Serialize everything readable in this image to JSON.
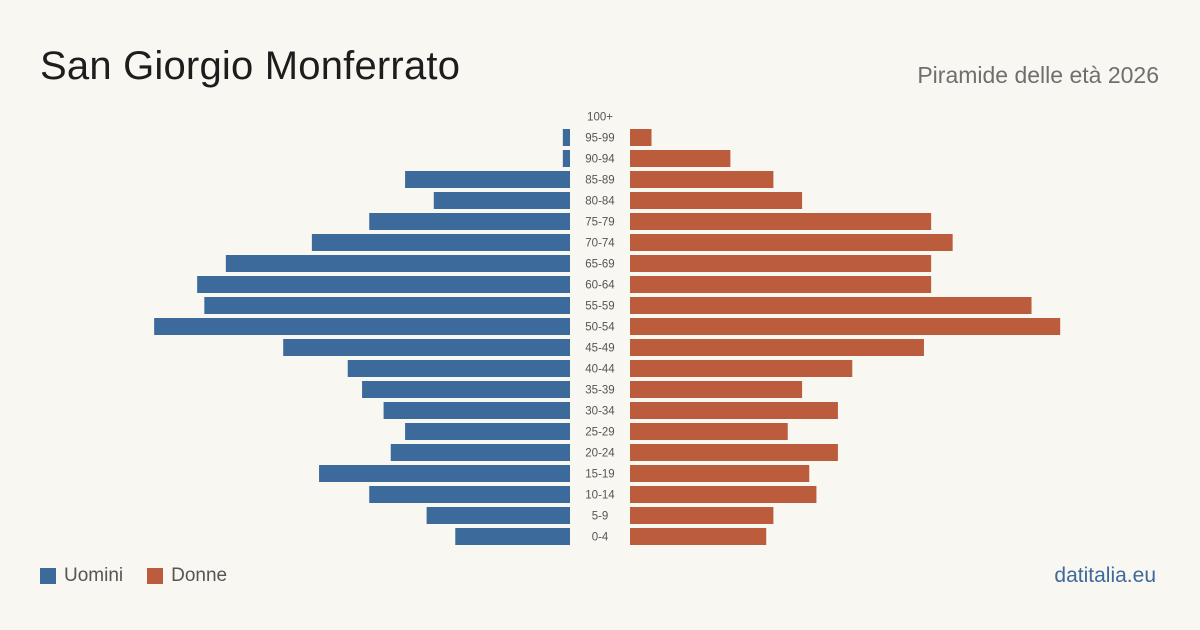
{
  "header": {
    "title": "San Giorgio Monferrato",
    "subtitle": "Piramide delle età 2026"
  },
  "legend": {
    "men_label": "Uomini",
    "women_label": "Donne"
  },
  "footer": {
    "brand": "datitalia.eu"
  },
  "colors": {
    "men": "#3b6a9b",
    "women": "#bb5d3c"
  },
  "chart_data": {
    "type": "bar",
    "orientation": "horizontal",
    "categories": [
      "100+",
      "95-99",
      "90-94",
      "85-89",
      "80-84",
      "75-79",
      "70-74",
      "65-69",
      "60-64",
      "55-59",
      "50-54",
      "45-49",
      "40-44",
      "35-39",
      "30-34",
      "25-29",
      "20-24",
      "15-19",
      "10-14",
      "5-9",
      "0-4"
    ],
    "series": [
      {
        "name": "Uomini",
        "values": [
          0,
          1,
          1,
          23,
          19,
          28,
          36,
          48,
          52,
          51,
          58,
          40,
          31,
          29,
          26,
          23,
          25,
          35,
          28,
          20,
          16
        ]
      },
      {
        "name": "Donne",
        "values": [
          0,
          3,
          14,
          20,
          24,
          42,
          45,
          42,
          42,
          56,
          60,
          41,
          31,
          24,
          29,
          22,
          29,
          25,
          26,
          20,
          19
        ]
      }
    ],
    "grid": false,
    "legend_position": "bottom-left"
  }
}
